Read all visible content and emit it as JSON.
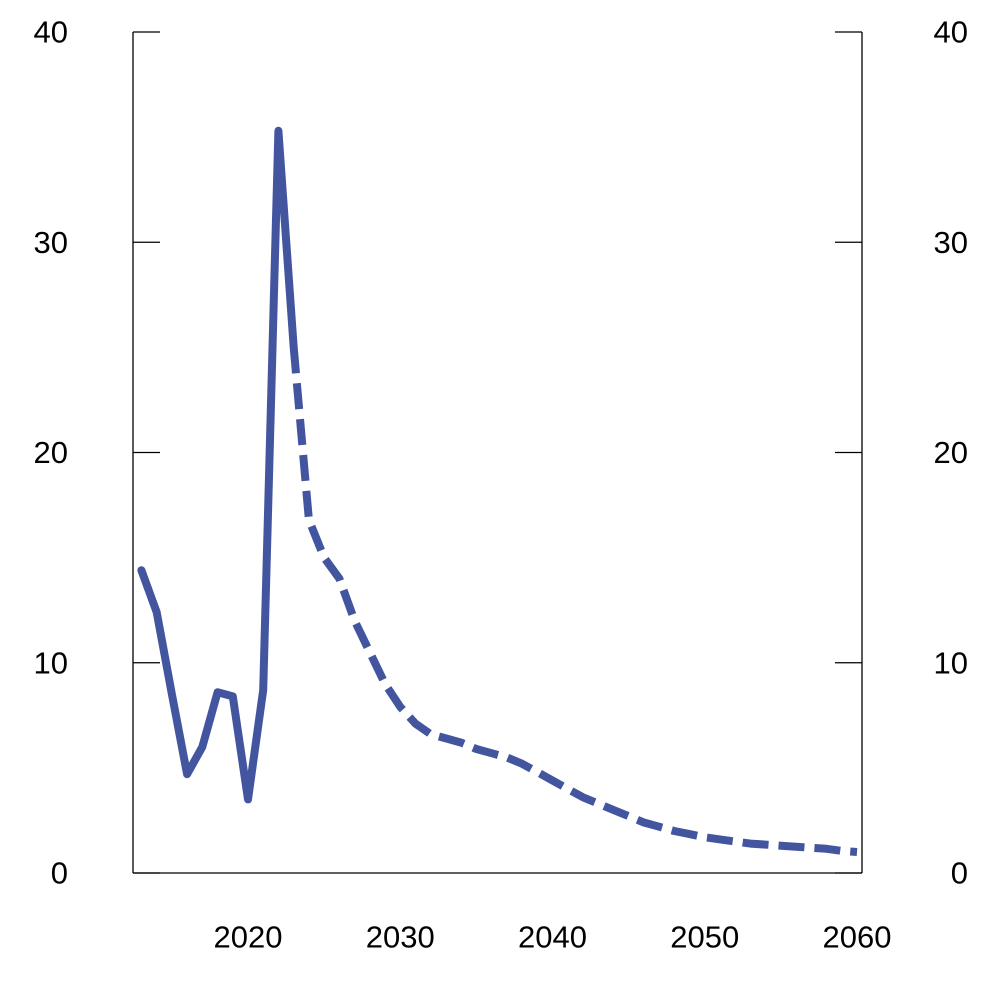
{
  "chart_data": {
    "type": "line",
    "title": "",
    "xlabel": "",
    "ylabel": "",
    "xlim": [
      2013,
      2060
    ],
    "ylim": [
      0,
      40
    ],
    "grid": false,
    "x_ticks": [
      2020,
      2030,
      2040,
      2050,
      2060
    ],
    "x_tick_labels": [
      "2020",
      "2030",
      "2040",
      "2050",
      "2060"
    ],
    "y_ticks": [
      0,
      10,
      20,
      30,
      40
    ],
    "y_tick_labels": [
      "0",
      "10",
      "20",
      "30",
      "40"
    ],
    "series": [
      {
        "style": "solid",
        "x": [
          2013,
          2014,
          2015,
          2016,
          2017,
          2018,
          2019,
          2020,
          2021,
          2022,
          2023
        ],
        "values": [
          14.4,
          12.4,
          8.5,
          4.7,
          6.0,
          8.6,
          8.4,
          3.5,
          8.7,
          35.3,
          25.0
        ]
      },
      {
        "style": "dashed",
        "x": [
          2023,
          2024,
          2025,
          2026,
          2027,
          2028,
          2029,
          2030,
          2031,
          2032,
          2033,
          2034,
          2035,
          2036,
          2037,
          2038,
          2039,
          2040,
          2041,
          2042,
          2043,
          2044,
          2045,
          2046,
          2047,
          2048,
          2049,
          2050,
          2051,
          2052,
          2053,
          2054,
          2055,
          2056,
          2057,
          2058,
          2059,
          2060
        ],
        "values": [
          25.0,
          16.8,
          15.0,
          14.0,
          12.0,
          10.5,
          9.0,
          7.9,
          7.1,
          6.6,
          6.4,
          6.2,
          5.9,
          5.7,
          5.5,
          5.2,
          4.8,
          4.4,
          4.0,
          3.6,
          3.3,
          3.0,
          2.7,
          2.4,
          2.2,
          2.0,
          1.85,
          1.7,
          1.6,
          1.5,
          1.4,
          1.35,
          1.3,
          1.25,
          1.2,
          1.15,
          1.05,
          1.0
        ]
      }
    ]
  },
  "colors": {
    "line": "#4455A0",
    "axis": "#000000"
  }
}
